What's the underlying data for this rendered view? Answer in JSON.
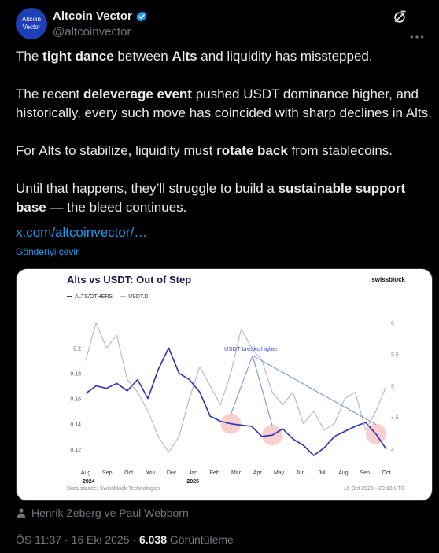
{
  "author": {
    "avatar_text_line1": "Altcoin",
    "avatar_text_line2": "Vector",
    "name": "Altcoin Vector",
    "handle": "@altcoinvector",
    "verified_color": "#1d9bf0"
  },
  "tweet": {
    "p1": [
      "The ",
      "tight dance",
      " between ",
      "Alts",
      " and liquidity has misstepped."
    ],
    "p2": [
      "The recent ",
      "deleverage event",
      " pushed USDT dominance higher, and historically, every such move has coincided with sharp declines in Alts."
    ],
    "p3": [
      "For Alts to stabilize, liquidity must ",
      "rotate back",
      " from stablecoins."
    ],
    "p4": [
      "Until that happens, they’ll struggle to build a ",
      "sustainable support base",
      " — the bleed continues."
    ],
    "link": "x.com/altcoinvector/…",
    "translate": "Gönderiyi çevir"
  },
  "icons": {
    "verified": "verified-badge-icon",
    "grok": "grok-icon",
    "more": "more-icon",
    "person": "person-icon"
  },
  "tagged": "Henrik Zeberg ve Paul Webborn",
  "meta": {
    "time": "ÖS 11:37 · 16 Eki 2025 · ",
    "views": "6.038",
    "views_label": " Görüntüleme"
  },
  "chart_data": {
    "type": "line",
    "title": "Alts vs USDT: Out of Step",
    "brand": "swissblock",
    "source": "Data source: Swissblock Technologies",
    "timestamp": "16 Oct 2025 • 20:18 UTC",
    "annotation": "USDT breaks higher",
    "x_ticks": [
      "Aug",
      "Sep",
      "Oct",
      "Nov",
      "Dec",
      "Jan",
      "Feb",
      "Mar",
      "Apr",
      "May",
      "Jun",
      "Jul",
      "Aug",
      "Sep",
      "Oct"
    ],
    "year_labels": [
      "2024",
      "2025"
    ],
    "left_ticks": [
      "0.2",
      "0.18",
      "0.16",
      "0.14",
      "0.12"
    ],
    "right_ticks": [
      "6",
      "5.5",
      "5",
      "4.5",
      "4"
    ],
    "ylim_left": [
      0.11,
      0.23
    ],
    "ylim_right": [
      3.8,
      6.2
    ],
    "x": [
      "2024-08",
      "2024-08",
      "2024-09",
      "2024-09",
      "2024-10",
      "2024-10",
      "2024-11",
      "2024-11",
      "2024-12",
      "2024-12",
      "2025-01",
      "2025-01",
      "2025-02",
      "2025-02",
      "2025-03",
      "2025-03",
      "2025-04",
      "2025-04",
      "2025-05",
      "2025-05",
      "2025-06",
      "2025-06",
      "2025-07",
      "2025-07",
      "2025-08",
      "2025-08",
      "2025-09",
      "2025-09",
      "2025-10",
      "2025-10"
    ],
    "series": [
      {
        "name": "ALTS/OTHERS",
        "color": "#2b2fb8",
        "axis": "left",
        "values": [
          0.164,
          0.17,
          0.168,
          0.172,
          0.166,
          0.175,
          0.16,
          0.183,
          0.2,
          0.18,
          0.175,
          0.165,
          0.146,
          0.142,
          0.14,
          0.139,
          0.138,
          0.13,
          0.131,
          0.136,
          0.128,
          0.123,
          0.115,
          0.121,
          0.13,
          0.134,
          0.138,
          0.141,
          0.132,
          0.12
        ]
      },
      {
        "name": "USDT.D",
        "color": "#b5b5c6",
        "axis": "right",
        "values": [
          5.4,
          6.0,
          5.6,
          5.8,
          5.1,
          4.9,
          4.6,
          4.2,
          3.95,
          4.2,
          4.8,
          5.3,
          5.0,
          4.7,
          5.2,
          5.9,
          5.6,
          5.4,
          4.9,
          4.7,
          4.9,
          4.4,
          4.6,
          4.3,
          4.4,
          4.8,
          4.9,
          4.3,
          4.6,
          5.0
        ]
      }
    ],
    "highlights": [
      "2025-03",
      "2025-05",
      "2025-10"
    ]
  }
}
